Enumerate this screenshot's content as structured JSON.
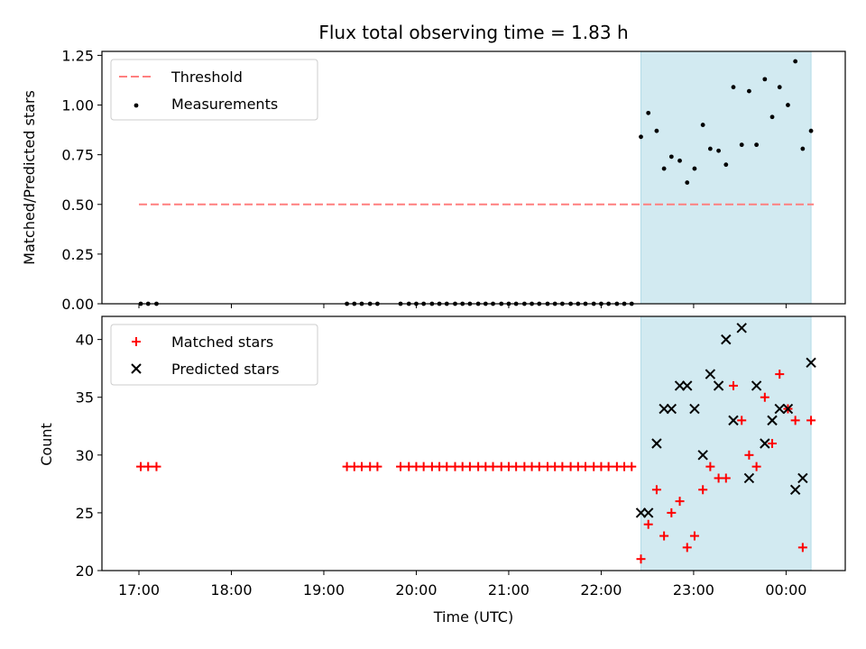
{
  "title": "Flux total observing time = 1.83 h",
  "colors": {
    "threshold": "#ff7f7f",
    "measurement": "#000000",
    "matched": "#ff0000",
    "predicted": "#000000",
    "shade": "#add8e6"
  },
  "chart_data": [
    {
      "type": "scatter",
      "ylabel": "Matched/Predicted stars",
      "xlim": [
        16.6,
        24.64
      ],
      "ylim": [
        0,
        1.27
      ],
      "yticks": [
        0.0,
        0.25,
        0.5,
        0.75,
        1.0,
        1.25
      ],
      "ytick_labels": [
        "0.00",
        "0.25",
        "0.50",
        "0.75",
        "1.00",
        "1.25"
      ],
      "legend": {
        "placement": "upper-left",
        "entries": [
          "Threshold",
          "Measurements"
        ]
      },
      "shaded_span": [
        22.43,
        24.27
      ],
      "threshold": {
        "name": "Threshold",
        "y": 0.5,
        "x_range": [
          17.0,
          24.3
        ]
      },
      "series": [
        {
          "name": "Measurements",
          "x": [
            17.02,
            17.1,
            17.19,
            19.25,
            19.33,
            19.41,
            19.5,
            19.58,
            19.83,
            19.92,
            20.0,
            20.08,
            20.17,
            20.25,
            20.33,
            20.42,
            20.5,
            20.58,
            20.67,
            20.75,
            20.83,
            20.92,
            21.0,
            21.08,
            21.17,
            21.25,
            21.33,
            21.42,
            21.5,
            21.58,
            21.67,
            21.75,
            21.83,
            21.92,
            22.0,
            22.08,
            22.17,
            22.25,
            22.33,
            22.43,
            22.51,
            22.6,
            22.68,
            22.76,
            22.85,
            22.93,
            23.01,
            23.1,
            23.18,
            23.27,
            23.35,
            23.43,
            23.52,
            23.6,
            23.68,
            23.77,
            23.85,
            23.93,
            24.02,
            24.1,
            24.18,
            24.27
          ],
          "y": [
            0,
            0,
            0,
            0,
            0,
            0,
            0,
            0,
            0,
            0,
            0,
            0,
            0,
            0,
            0,
            0,
            0,
            0,
            0,
            0,
            0,
            0,
            0,
            0,
            0,
            0,
            0,
            0,
            0,
            0,
            0,
            0,
            0,
            0,
            0,
            0,
            0,
            0,
            0,
            0.84,
            0.96,
            0.87,
            0.68,
            0.74,
            0.72,
            0.61,
            0.68,
            0.9,
            0.78,
            0.77,
            0.7,
            1.09,
            0.8,
            1.07,
            0.8,
            1.13,
            0.94,
            1.09,
            1.0,
            1.22,
            0.78,
            0.87
          ]
        }
      ]
    },
    {
      "type": "scatter",
      "ylabel": "Count",
      "xlabel": "Time (UTC)",
      "xlim": [
        16.6,
        24.64
      ],
      "ylim": [
        20,
        42
      ],
      "yticks": [
        20,
        25,
        30,
        35,
        40
      ],
      "ytick_labels": [
        "20",
        "25",
        "30",
        "35",
        "40"
      ],
      "xticks": [
        17,
        18,
        19,
        20,
        21,
        22,
        23,
        24
      ],
      "xtick_labels": [
        "17:00",
        "18:00",
        "19:00",
        "20:00",
        "21:00",
        "22:00",
        "23:00",
        "00:00"
      ],
      "legend": {
        "placement": "upper-left",
        "entries": [
          "Matched stars",
          "Predicted stars"
        ]
      },
      "shaded_span": [
        22.43,
        24.27
      ],
      "series": [
        {
          "name": "Matched stars",
          "marker": "plus",
          "x": [
            17.02,
            17.1,
            17.19,
            19.25,
            19.33,
            19.41,
            19.5,
            19.58,
            19.83,
            19.92,
            20.0,
            20.08,
            20.17,
            20.25,
            20.33,
            20.42,
            20.5,
            20.58,
            20.67,
            20.75,
            20.83,
            20.92,
            21.0,
            21.08,
            21.17,
            21.25,
            21.33,
            21.42,
            21.5,
            21.58,
            21.67,
            21.75,
            21.83,
            21.92,
            22.0,
            22.08,
            22.17,
            22.25,
            22.33,
            22.43,
            22.51,
            22.6,
            22.68,
            22.76,
            22.85,
            22.93,
            23.01,
            23.1,
            23.18,
            23.27,
            23.35,
            23.43,
            23.52,
            23.6,
            23.68,
            23.77,
            23.85,
            23.93,
            24.02,
            24.1,
            24.18,
            24.27
          ],
          "y": [
            29,
            29,
            29,
            29,
            29,
            29,
            29,
            29,
            29,
            29,
            29,
            29,
            29,
            29,
            29,
            29,
            29,
            29,
            29,
            29,
            29,
            29,
            29,
            29,
            29,
            29,
            29,
            29,
            29,
            29,
            29,
            29,
            29,
            29,
            29,
            29,
            29,
            29,
            29,
            21,
            24,
            27,
            23,
            25,
            26,
            22,
            23,
            27,
            29,
            28,
            28,
            36,
            33,
            30,
            29,
            35,
            31,
            37,
            34,
            33,
            22,
            33
          ]
        },
        {
          "name": "Predicted stars",
          "marker": "x",
          "x": [
            22.43,
            22.51,
            22.6,
            22.68,
            22.76,
            22.85,
            22.93,
            23.01,
            23.1,
            23.18,
            23.27,
            23.35,
            23.43,
            23.52,
            23.6,
            23.68,
            23.77,
            23.85,
            23.93,
            24.02,
            24.1,
            24.18,
            24.27
          ],
          "y": [
            25,
            25,
            31,
            34,
            34,
            36,
            36,
            34,
            30,
            37,
            36,
            40,
            33,
            41,
            28,
            36,
            31,
            33,
            34,
            34,
            27,
            28,
            38
          ]
        }
      ]
    }
  ]
}
